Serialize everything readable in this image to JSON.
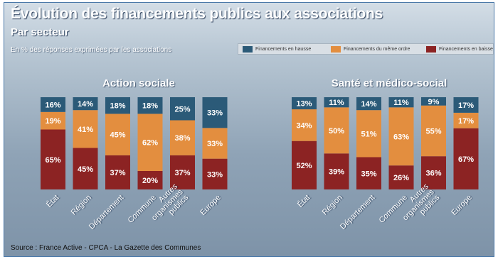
{
  "header": {
    "title": "Évolution des financements publics aux associations",
    "subtitle": "Par secteur",
    "note": "En % des réponses exprimées par les associations"
  },
  "legend": {
    "items": [
      {
        "label": "Financements en hausse",
        "color": "#2b5a78"
      },
      {
        "label": "Financements du même ordre",
        "color": "#e38e3f"
      },
      {
        "label": "Financements en baisse",
        "color": "#8c2323"
      }
    ]
  },
  "source": "Source : France Active - CPCA - La Gazette des Communes",
  "chart_data": [
    {
      "type": "bar",
      "stacked": true,
      "title": "Action sociale",
      "categories": [
        "État",
        "Région",
        "Département",
        "Commune",
        "Autres organismes publics",
        "Europe"
      ],
      "series": [
        {
          "name": "Financements en baisse",
          "values": [
            65,
            45,
            37,
            20,
            37,
            33
          ]
        },
        {
          "name": "Financements du même ordre",
          "values": [
            19,
            41,
            45,
            62,
            38,
            33
          ]
        },
        {
          "name": "Financements en hausse",
          "values": [
            16,
            14,
            18,
            18,
            25,
            33
          ]
        }
      ],
      "ylim": [
        0,
        100
      ]
    },
    {
      "type": "bar",
      "stacked": true,
      "title": "Santé et médico-social",
      "categories": [
        "État",
        "Région",
        "Département",
        "Commune",
        "Autres organismes publics",
        "Europe"
      ],
      "series": [
        {
          "name": "Financements en baisse",
          "values": [
            52,
            39,
            35,
            26,
            36,
            67
          ]
        },
        {
          "name": "Financements du même ordre",
          "values": [
            34,
            50,
            51,
            63,
            55,
            17
          ]
        },
        {
          "name": "Financements en hausse",
          "values": [
            13,
            11,
            14,
            11,
            9,
            17
          ]
        }
      ],
      "ylim": [
        0,
        100
      ]
    }
  ]
}
